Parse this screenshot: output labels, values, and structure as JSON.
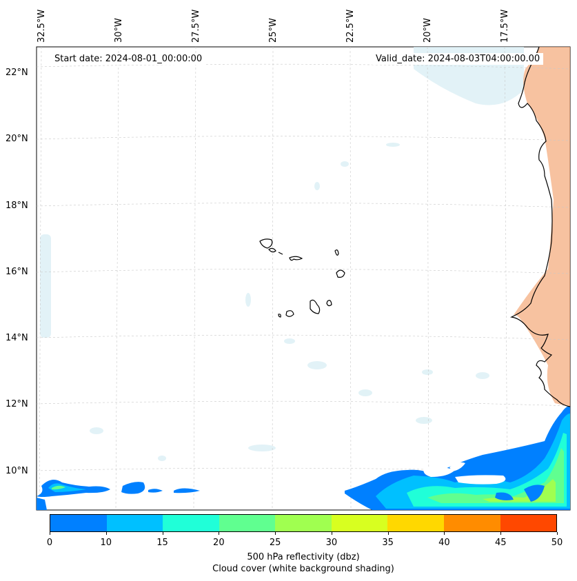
{
  "start_date": "Start date: 2024-08-01_00:00:00",
  "valid_date": "Valid_date: 2024-08-03T04:00:00.00",
  "lat_labels": [
    "22°N",
    "20°N",
    "18°N",
    "16°N",
    "14°N",
    "12°N",
    "10°N"
  ],
  "lon_labels": [
    "32.5°W",
    "30°W",
    "27.5°W",
    "25°W",
    "22.5°W",
    "20°W",
    "17.5°W"
  ],
  "colorbar": {
    "ticks": [
      "0",
      "10",
      "15",
      "20",
      "25",
      "30",
      "35",
      "40",
      "45",
      "50"
    ],
    "colors": [
      "#0080ff",
      "#00c0ff",
      "#20ffd8",
      "#60ff90",
      "#a0ff50",
      "#d8ff20",
      "#ffd800",
      "#ff8c00",
      "#ff4800"
    ],
    "label_line1": "500 hPa reflectivity (dbz)",
    "label_line2": "Cloud cover (white background shading)"
  },
  "colors": {
    "cloud_cover": "#d8eef4",
    "land_shading": "#f4a878",
    "coastline": "#000000",
    "gridline": "#c8c8c8"
  }
}
